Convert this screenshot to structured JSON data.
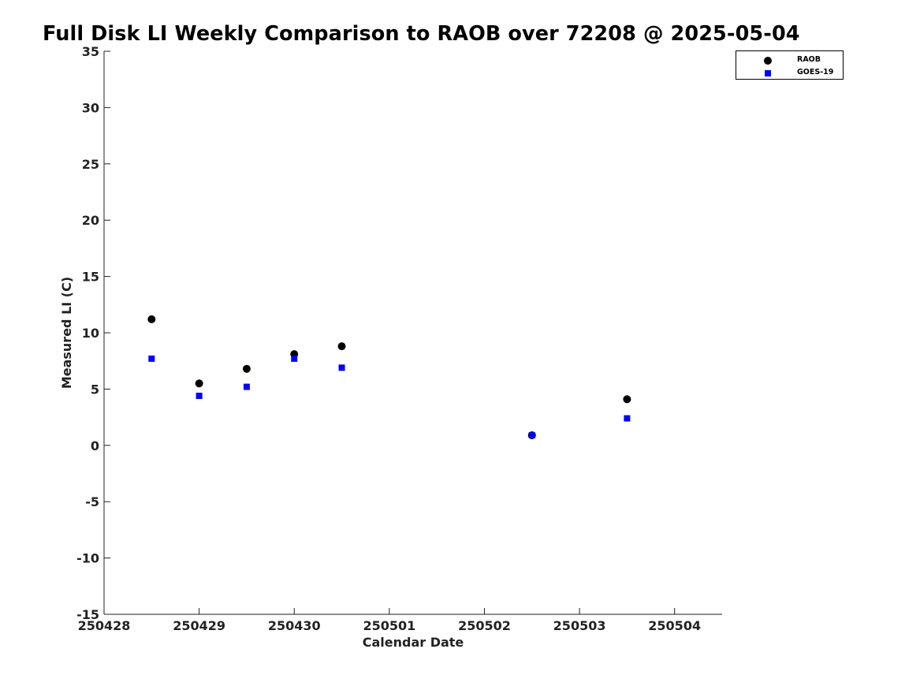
{
  "title": "Full Disk LI Weekly Comparison to RAOB over 72208 @ 2025-05-04",
  "colors": {
    "raob": "#000000",
    "goes": "#0000ff",
    "axis": "#222222"
  },
  "chart_data": {
    "type": "scatter",
    "title": "Full Disk LI Weekly Comparison to RAOB over 72208 @ 2025-05-04",
    "xlabel": "Calendar Date",
    "ylabel": "Measured LI (C)",
    "xlim": [
      0,
      6.5
    ],
    "ylim": [
      -15,
      35
    ],
    "x_ticks": [
      0,
      1,
      2,
      3,
      4,
      5,
      6
    ],
    "x_tick_labels": [
      "250428",
      "250429",
      "250430",
      "250501",
      "250502",
      "250503",
      "250504"
    ],
    "y_ticks": [
      -15,
      -10,
      -5,
      0,
      5,
      10,
      15,
      20,
      25,
      30,
      35
    ],
    "y_tick_labels": [
      "-15",
      "-10",
      "-5",
      "0",
      "5",
      "10",
      "15",
      "20",
      "25",
      "30",
      "35"
    ],
    "legend_position": "top-right",
    "series": [
      {
        "name": "RAOB",
        "marker": "circle",
        "color": "#000000",
        "x": [
          0.5,
          1.0,
          1.5,
          2.0,
          2.5,
          4.5,
          5.5
        ],
        "y": [
          11.2,
          5.5,
          6.8,
          8.1,
          8.8,
          0.9,
          4.1
        ]
      },
      {
        "name": "GOES-19",
        "marker": "square",
        "color": "#0000ff",
        "x": [
          0.5,
          1.0,
          1.5,
          2.0,
          2.5,
          4.5,
          5.5
        ],
        "y": [
          7.7,
          4.4,
          5.2,
          7.7,
          6.9,
          0.9,
          2.4
        ]
      }
    ]
  },
  "legend": {
    "items": [
      "RAOB",
      "GOES-19"
    ]
  }
}
